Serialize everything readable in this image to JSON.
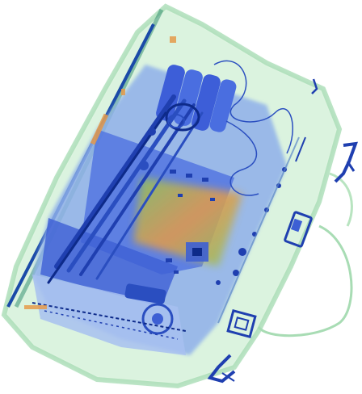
{
  "image": {
    "kind": "x-ray baggage scan",
    "background": "#ffffff",
    "palette": {
      "organic_light": "#d8f2dc",
      "organic_mid": "#b4e2bc",
      "organic_edge": "#7fc79a",
      "inorganic_orange": "#e59a4a",
      "inorganic_green": "#8cc65a",
      "metal_blue": "#4a6ee0",
      "metal_dark": "#1f3fb0",
      "metal_deep": "#0d2a8a"
    }
  }
}
